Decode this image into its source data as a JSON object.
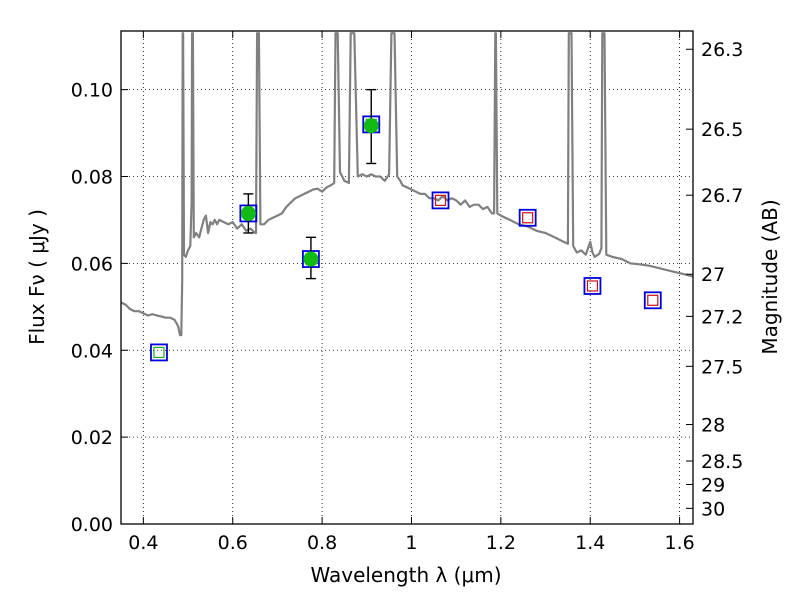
{
  "chart_data": {
    "type": "scatter",
    "xlabel": "Wavelength  λ (μm)",
    "ylabel": "Flux  Fν  ( μJy )",
    "right_ylabel": "Magnitude (AB)",
    "xlim": [
      0.35,
      1.63
    ],
    "ylim": [
      0.0,
      0.1135
    ],
    "grid": true,
    "x_ticks": [
      0.4,
      0.6,
      0.8,
      1.0,
      1.2,
      1.4,
      1.6
    ],
    "x_tick_labels": [
      "0.4",
      "0.6",
      "0.8",
      "1",
      "1.2",
      "1.4",
      "1.6"
    ],
    "y_ticks": [
      0.0,
      0.02,
      0.04,
      0.06,
      0.08,
      0.1
    ],
    "y_tick_labels": [
      "0.00",
      "0.02",
      "0.04",
      "0.06",
      "0.08",
      "0.10"
    ],
    "right_ticks": [
      {
        "flux": 0.1093,
        "label": "26.3"
      },
      {
        "flux": 0.0909,
        "label": "26.5"
      },
      {
        "flux": 0.0757,
        "label": "26.7"
      },
      {
        "flux": 0.0575,
        "label": "27"
      },
      {
        "flux": 0.0478,
        "label": "27.2"
      },
      {
        "flux": 0.0363,
        "label": "27.5"
      },
      {
        "flux": 0.0229,
        "label": "28"
      },
      {
        "flux": 0.0145,
        "label": "28.5"
      },
      {
        "flux": 0.0091,
        "label": "29"
      },
      {
        "flux": 0.0036,
        "label": "30"
      }
    ],
    "model_spectrum": {
      "color": "#808080",
      "points": [
        [
          0.35,
          0.051
        ],
        [
          0.36,
          0.0505
        ],
        [
          0.37,
          0.0495
        ],
        [
          0.38,
          0.049
        ],
        [
          0.39,
          0.049
        ],
        [
          0.4,
          0.0485
        ],
        [
          0.41,
          0.048
        ],
        [
          0.42,
          0.0483
        ],
        [
          0.43,
          0.048
        ],
        [
          0.44,
          0.0478
        ],
        [
          0.45,
          0.0475
        ],
        [
          0.46,
          0.0475
        ],
        [
          0.47,
          0.047
        ],
        [
          0.478,
          0.0455
        ],
        [
          0.482,
          0.0435
        ],
        [
          0.485,
          0.0435
        ],
        [
          0.487,
          0.056
        ],
        [
          0.488,
          0.113
        ],
        [
          0.489,
          0.113
        ],
        [
          0.491,
          0.062
        ],
        [
          0.495,
          0.0615
        ],
        [
          0.5,
          0.063
        ],
        [
          0.505,
          0.064
        ],
        [
          0.508,
          0.074
        ],
        [
          0.509,
          0.113
        ],
        [
          0.511,
          0.113
        ],
        [
          0.513,
          0.066
        ],
        [
          0.518,
          0.067
        ],
        [
          0.525,
          0.066
        ],
        [
          0.53,
          0.068
        ],
        [
          0.535,
          0.07
        ],
        [
          0.54,
          0.071
        ],
        [
          0.545,
          0.067
        ],
        [
          0.55,
          0.0695
        ],
        [
          0.555,
          0.069
        ],
        [
          0.56,
          0.07
        ],
        [
          0.565,
          0.069
        ],
        [
          0.57,
          0.07
        ],
        [
          0.58,
          0.0695
        ],
        [
          0.59,
          0.069
        ],
        [
          0.6,
          0.0695
        ],
        [
          0.61,
          0.068
        ],
        [
          0.62,
          0.069
        ],
        [
          0.63,
          0.0675
        ],
        [
          0.64,
          0.068
        ],
        [
          0.65,
          0.067
        ],
        [
          0.652,
          0.067
        ],
        [
          0.6545,
          0.113
        ],
        [
          0.6585,
          0.113
        ],
        [
          0.662,
          0.069
        ],
        [
          0.67,
          0.069
        ],
        [
          0.68,
          0.07
        ],
        [
          0.69,
          0.0705
        ],
        [
          0.7,
          0.071
        ],
        [
          0.71,
          0.0715
        ],
        [
          0.72,
          0.073
        ],
        [
          0.73,
          0.074
        ],
        [
          0.74,
          0.075
        ],
        [
          0.75,
          0.0755
        ],
        [
          0.76,
          0.076
        ],
        [
          0.77,
          0.0765
        ],
        [
          0.78,
          0.077
        ],
        [
          0.79,
          0.0772
        ],
        [
          0.8,
          0.0765
        ],
        [
          0.81,
          0.0775
        ],
        [
          0.82,
          0.078
        ],
        [
          0.827,
          0.0785
        ],
        [
          0.83,
          0.113
        ],
        [
          0.835,
          0.113
        ],
        [
          0.84,
          0.081
        ],
        [
          0.85,
          0.079
        ],
        [
          0.86,
          0.0785
        ],
        [
          0.864,
          0.113
        ],
        [
          0.872,
          0.113
        ],
        [
          0.88,
          0.08
        ],
        [
          0.89,
          0.0805
        ],
        [
          0.9,
          0.08
        ],
        [
          0.91,
          0.0805
        ],
        [
          0.92,
          0.08
        ],
        [
          0.93,
          0.08
        ],
        [
          0.94,
          0.079
        ],
        [
          0.95,
          0.0805
        ],
        [
          0.955,
          0.113
        ],
        [
          0.962,
          0.113
        ],
        [
          0.968,
          0.08
        ],
        [
          0.975,
          0.079
        ],
        [
          0.98,
          0.078
        ],
        [
          0.99,
          0.0775
        ],
        [
          1.0,
          0.077
        ],
        [
          1.01,
          0.0765
        ],
        [
          1.02,
          0.076
        ],
        [
          1.03,
          0.076
        ],
        [
          1.04,
          0.075
        ],
        [
          1.05,
          0.075
        ],
        [
          1.06,
          0.0745
        ],
        [
          1.07,
          0.0755
        ],
        [
          1.08,
          0.0745
        ],
        [
          1.09,
          0.075
        ],
        [
          1.1,
          0.0745
        ],
        [
          1.11,
          0.0735
        ],
        [
          1.12,
          0.0745
        ],
        [
          1.13,
          0.073
        ],
        [
          1.14,
          0.0735
        ],
        [
          1.15,
          0.0735
        ],
        [
          1.16,
          0.0725
        ],
        [
          1.17,
          0.073
        ],
        [
          1.18,
          0.0715
        ],
        [
          1.185,
          0.0715
        ],
        [
          1.1875,
          0.113
        ],
        [
          1.189,
          0.113
        ],
        [
          1.192,
          0.0715
        ],
        [
          1.2,
          0.071
        ],
        [
          1.22,
          0.07
        ],
        [
          1.24,
          0.069
        ],
        [
          1.26,
          0.0685
        ],
        [
          1.28,
          0.0675
        ],
        [
          1.3,
          0.067
        ],
        [
          1.32,
          0.066
        ],
        [
          1.34,
          0.065
        ],
        [
          1.35,
          0.0645
        ],
        [
          1.352,
          0.113
        ],
        [
          1.358,
          0.113
        ],
        [
          1.362,
          0.064
        ],
        [
          1.37,
          0.0625
        ],
        [
          1.38,
          0.063
        ],
        [
          1.39,
          0.062
        ],
        [
          1.4,
          0.065
        ],
        [
          1.405,
          0.0625
        ],
        [
          1.41,
          0.0615
        ],
        [
          1.42,
          0.0622
        ],
        [
          1.425,
          0.0635
        ],
        [
          1.427,
          0.113
        ],
        [
          1.432,
          0.113
        ],
        [
          1.436,
          0.062
        ],
        [
          1.45,
          0.0615
        ],
        [
          1.47,
          0.061
        ],
        [
          1.49,
          0.06
        ],
        [
          1.51,
          0.0598
        ],
        [
          1.53,
          0.0595
        ],
        [
          1.55,
          0.059
        ],
        [
          1.57,
          0.0585
        ],
        [
          1.59,
          0.058
        ],
        [
          1.61,
          0.0575
        ],
        [
          1.63,
          0.057
        ]
      ]
    },
    "filter_points": [
      {
        "x": 0.435,
        "y": 0.0395,
        "box_color": "#0000dd",
        "inner_color": "#22aa22"
      },
      {
        "x": 0.635,
        "y": 0.0715,
        "box_color": "#0000dd",
        "inner_color": "#22aa22"
      },
      {
        "x": 0.775,
        "y": 0.061,
        "box_color": "#0000dd",
        "inner_color": "#22aa22"
      },
      {
        "x": 0.91,
        "y": 0.092,
        "box_color": "#0000dd",
        "inner_color": "#22aa22"
      },
      {
        "x": 1.065,
        "y": 0.0745,
        "box_color": "#0000dd",
        "inner_color": "#cc1111"
      },
      {
        "x": 1.26,
        "y": 0.0705,
        "box_color": "#0000dd",
        "inner_color": "#cc1111"
      },
      {
        "x": 1.405,
        "y": 0.0548,
        "box_color": "#0000dd",
        "inner_color": "#cc1111"
      },
      {
        "x": 1.54,
        "y": 0.0515,
        "box_color": "#0000dd",
        "inner_color": "#cc1111"
      }
    ],
    "observations": [
      {
        "x": 0.635,
        "y": 0.0715,
        "yerr_low": 0.067,
        "yerr_high": 0.076
      },
      {
        "x": 0.775,
        "y": 0.061,
        "yerr_low": 0.0565,
        "yerr_high": 0.066
      },
      {
        "x": 0.91,
        "y": 0.0917,
        "yerr_low": 0.083,
        "yerr_high": 0.1
      }
    ],
    "observation_color": "#11bb11"
  }
}
